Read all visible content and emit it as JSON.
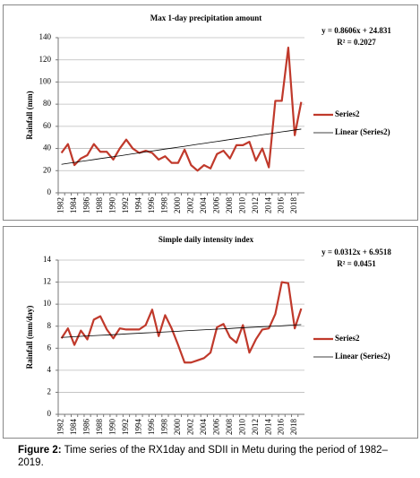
{
  "chart_data": [
    {
      "type": "line",
      "title": "Max 1-day precipitation amount",
      "y_label": "Rainfall (mm)",
      "annotations": [
        "y = 0.8606x + 24.831",
        "R² = 0.2027"
      ],
      "categories": [
        "1982",
        null,
        "1984",
        null,
        "1986",
        null,
        "1988",
        null,
        "1990",
        null,
        "1992",
        null,
        "1994",
        null,
        "1996",
        null,
        "1998",
        null,
        "2000",
        null,
        "2002",
        null,
        "2004",
        null,
        "2006",
        null,
        "2008",
        null,
        "2010",
        null,
        "2012",
        null,
        "2014",
        null,
        "2016",
        null,
        "2018",
        null
      ],
      "series": [
        {
          "name": "Series2",
          "color": "#c0392b",
          "line_width": 2.2,
          "values": [
            36,
            44,
            25,
            31,
            34,
            44,
            37,
            37,
            30,
            40,
            48,
            40,
            36,
            38,
            36,
            30,
            33,
            27,
            27,
            39,
            25,
            20,
            25,
            22,
            35,
            38,
            31,
            43,
            43,
            46,
            29,
            40,
            23,
            83,
            83,
            131,
            52,
            82
          ]
        },
        {
          "name": "Linear (Series2)",
          "color": "#000000",
          "line_width": 0.8,
          "values": [
            25.7,
            26.6,
            27.4,
            28.3,
            29.1,
            30.0,
            30.9,
            31.7,
            32.6,
            33.4,
            34.3,
            35.2,
            36.0,
            36.9,
            37.7,
            38.6,
            39.5,
            40.3,
            41.2,
            42.0,
            42.9,
            43.8,
            44.6,
            45.5,
            46.3,
            47.2,
            48.1,
            48.9,
            49.8,
            50.6,
            51.5,
            52.4,
            53.2,
            54.1,
            55.0,
            55.8,
            56.7,
            57.5
          ]
        }
      ],
      "ylim": [
        0,
        140
      ],
      "yticks": [
        0,
        20,
        40,
        60,
        80,
        100,
        120,
        140
      ],
      "grid": true,
      "legend": "right"
    },
    {
      "type": "line",
      "title": "Simple daily intensity index",
      "y_label": "Rainfall (mm/day)",
      "annotations": [
        "y = 0.0312x + 6.9518",
        "R² = 0.0451"
      ],
      "categories": [
        "1982",
        null,
        "1984",
        null,
        "1986",
        null,
        "1988",
        null,
        "1990",
        null,
        "1992",
        null,
        "1994",
        null,
        "1996",
        null,
        "1998",
        null,
        "2000",
        null,
        "2002",
        null,
        "2004",
        null,
        "2006",
        null,
        "2008",
        null,
        "2010",
        null,
        "2012",
        null,
        "2014",
        null,
        "2016",
        null,
        "2018",
        null
      ],
      "series": [
        {
          "name": "Series2",
          "color": "#c0392b",
          "line_width": 2.2,
          "values": [
            6.9,
            7.8,
            6.3,
            7.6,
            6.8,
            8.6,
            8.9,
            7.7,
            6.9,
            7.8,
            7.7,
            7.7,
            7.7,
            8.1,
            9.5,
            7.1,
            9.0,
            7.8,
            6.3,
            4.7,
            4.7,
            4.9,
            5.1,
            5.6,
            7.9,
            8.2,
            7.0,
            6.5,
            8.1,
            5.6,
            6.8,
            7.7,
            7.8,
            9.1,
            12.0,
            11.9,
            7.8,
            9.6
          ]
        },
        {
          "name": "Linear (Series2)",
          "color": "#000000",
          "line_width": 0.8,
          "values": [
            6.98,
            7.01,
            7.05,
            7.08,
            7.11,
            7.14,
            7.17,
            7.2,
            7.23,
            7.26,
            7.3,
            7.33,
            7.36,
            7.39,
            7.42,
            7.45,
            7.48,
            7.51,
            7.54,
            7.58,
            7.61,
            7.64,
            7.67,
            7.7,
            7.73,
            7.76,
            7.79,
            7.83,
            7.86,
            7.89,
            7.92,
            7.95,
            7.98,
            8.01,
            8.04,
            8.08,
            8.11,
            8.14
          ]
        }
      ],
      "ylim": [
        0,
        14
      ],
      "yticks": [
        0,
        2,
        4,
        6,
        8,
        10,
        12,
        14
      ],
      "grid": true,
      "legend": "right"
    }
  ],
  "caption": {
    "label": "Figure 2:",
    "text": "Time series of the RX1day and SDII in Metu during the period of 1982–2019."
  }
}
